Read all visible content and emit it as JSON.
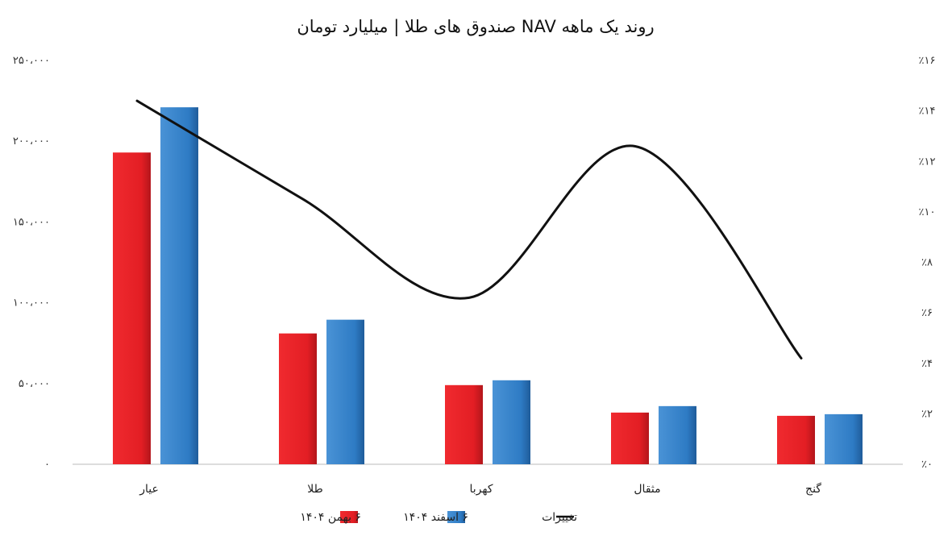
{
  "chart_data": {
    "type": "bar",
    "title": "روند یک ماهه NAV صندوق های طلا | میلیارد تومان",
    "categories": [
      "عیار",
      "طلا",
      "کهربا",
      "مثقال",
      "گنج"
    ],
    "series": [
      {
        "name": "۶ بهمن ۱۴۰۴",
        "type": "bar",
        "color": "#e31e24",
        "values": [
          193000,
          81000,
          49000,
          32000,
          30000
        ]
      },
      {
        "name": "۶ اسفند ۱۴۰۴",
        "type": "bar",
        "color": "#2e7bc4",
        "values": [
          221000,
          89500,
          52000,
          36000,
          31000
        ]
      },
      {
        "name": "تغییرات",
        "type": "line",
        "axis": "right",
        "color": "#111111",
        "values": [
          14.4,
          10.5,
          6.6,
          12.6,
          4.2
        ]
      }
    ],
    "y_left": {
      "lim": [
        0,
        250000
      ],
      "ticks": [
        0,
        50000,
        100000,
        150000,
        200000,
        250000
      ],
      "tick_labels": [
        "۰",
        "۵۰،۰۰۰",
        "۱۰۰،۰۰۰",
        "۱۵۰،۰۰۰",
        "۲۰۰،۰۰۰",
        "۲۵۰،۰۰۰"
      ]
    },
    "y_right": {
      "lim": [
        0,
        16
      ],
      "ticks": [
        0,
        2,
        4,
        6,
        8,
        10,
        12,
        14,
        16
      ],
      "tick_labels": [
        "٪۰",
        "٪۲",
        "٪۴",
        "٪۶",
        "٪۸",
        "٪۱۰",
        "٪۱۲",
        "٪۱۴",
        "٪۱۶"
      ]
    },
    "grid": false,
    "legend": "bottom-center"
  }
}
